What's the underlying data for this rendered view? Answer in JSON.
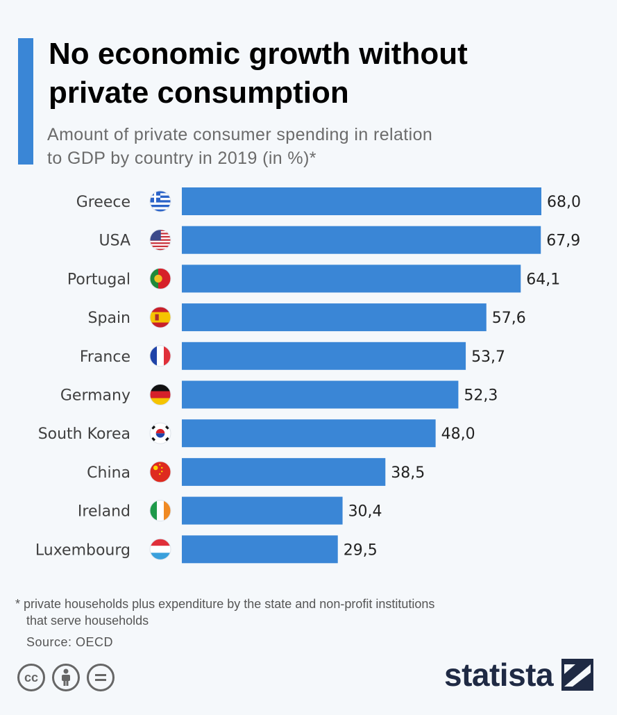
{
  "header": {
    "title_lines": [
      "No economic growth without",
      "private consumption"
    ],
    "subtitle_lines": [
      "Amount of private consumer spending in relation",
      "to GDP by country in 2019 (in %)*"
    ]
  },
  "colors": {
    "bar": "#3a86d6",
    "accent": "#3a86d6",
    "brand": "#1f2a44"
  },
  "chart_data": {
    "type": "bar",
    "orientation": "horizontal",
    "categories": [
      "Greece",
      "USA",
      "Portugal",
      "Spain",
      "France",
      "Germany",
      "South Korea",
      "China",
      "Ireland",
      "Luxembourg"
    ],
    "values": [
      68.0,
      67.9,
      64.1,
      57.6,
      53.7,
      52.3,
      48.0,
      38.5,
      30.4,
      29.5
    ],
    "value_labels": [
      "68,0",
      "67,9",
      "64,1",
      "57,6",
      "53,7",
      "52,3",
      "48,0",
      "38,5",
      "30,4",
      "29,5"
    ],
    "flags": [
      "greece-flag-icon",
      "usa-flag-icon",
      "portugal-flag-icon",
      "spain-flag-icon",
      "france-flag-icon",
      "germany-flag-icon",
      "south-korea-flag-icon",
      "china-flag-icon",
      "ireland-flag-icon",
      "luxembourg-flag-icon"
    ],
    "xlim": [
      0,
      68
    ],
    "grid": false,
    "legend": "none"
  },
  "footer": {
    "footnote_lines": [
      "* private households plus expenditure by the state and non-profit institutions",
      "that serve households"
    ],
    "source": "Source: OECD",
    "license_icons": [
      "cc-icon",
      "attribution-icon",
      "no-derivatives-icon"
    ],
    "brand": "statista"
  }
}
